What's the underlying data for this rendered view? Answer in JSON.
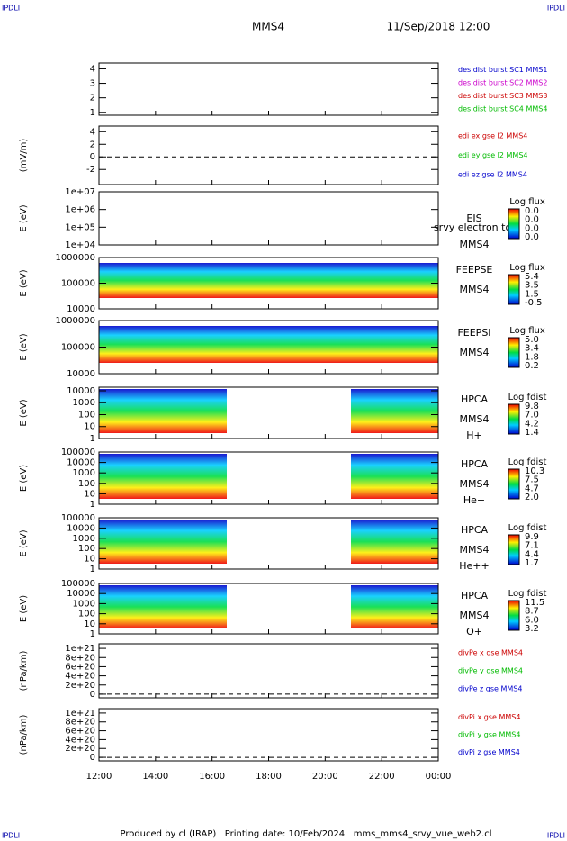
{
  "header": {
    "corner": "IPDLI",
    "mission": "MMS4",
    "date": "11/Sep/2018 12:00"
  },
  "footer": "Produced by cl (IRAP)   Printing date: 10/Feb/2024   mms_mms4_srvy_vue_web2.cl",
  "x_ticks": [
    "12:00",
    "14:00",
    "16:00",
    "18:00",
    "20:00",
    "22:00",
    "00:00"
  ],
  "chart_data": [
    {
      "type": "line",
      "ylim": [
        0.8,
        4.4
      ],
      "yticks": [
        4,
        3,
        2,
        1
      ],
      "series": [
        {
          "name": "des dist burst SC1 MMS1",
          "color": "#0000cc"
        },
        {
          "name": "des dist burst SC2 MMS2",
          "color": "#cc00cc"
        },
        {
          "name": "des dist burst SC3 MMS3",
          "color": "#cc0000"
        },
        {
          "name": "des dist burst SC4 MMS4",
          "color": "#00bb00"
        }
      ]
    },
    {
      "type": "line",
      "ylabel": "(mV/m)",
      "ylim": [
        -4.4,
        4.9
      ],
      "yticks": [
        4,
        2,
        0,
        -2
      ],
      "series": [
        {
          "name": "edi ex gse l2 MMS4",
          "color": "#cc0000"
        },
        {
          "name": "edi ey gse l2 MMS4",
          "color": "#00bb00"
        },
        {
          "name": "edi ez gse l2 MMS4",
          "color": "#0000cc"
        }
      ]
    },
    {
      "type": "spectrogram",
      "ylabel": "E (eV)",
      "log": true,
      "ylim": [
        10000,
        10000000
      ],
      "yticks": [
        {
          "value": 10000000,
          "label": "1e+07"
        },
        {
          "value": 1000000,
          "label": "1e+06"
        },
        {
          "value": 100000,
          "label": "1e+05"
        },
        {
          "value": 10000,
          "label": "1e+04"
        }
      ],
      "instrument": [
        "EIS",
        "srvy electron tof",
        "MMS4"
      ],
      "colorbar_title": "Log flux",
      "colorbar_ticks": [
        "0.0",
        "0.0",
        "0.0",
        "0.0"
      ]
    },
    {
      "type": "spectrogram",
      "ylabel": "E (eV)",
      "log": true,
      "ylim": [
        10000,
        1000000
      ],
      "yticks": [
        1000000,
        100000,
        10000
      ],
      "instrument": [
        "FEEPSE",
        "MMS4"
      ],
      "colorbar_title": "Log flux",
      "colorbar_ticks": [
        "5.4",
        "3.5",
        "1.5",
        "-0.5"
      ],
      "fill": "full"
    },
    {
      "type": "spectrogram",
      "ylabel": "E (eV)",
      "log": true,
      "ylim": [
        10000,
        1000000
      ],
      "yticks": [
        1000000,
        100000,
        10000
      ],
      "instrument": [
        "FEEPSI",
        "MMS4"
      ],
      "colorbar_title": "Log flux",
      "colorbar_ticks": [
        "5.0",
        "3.4",
        "1.8",
        "0.2"
      ],
      "fill": "full"
    },
    {
      "type": "spectrogram",
      "ylabel": "E (eV)",
      "log": true,
      "ylim": [
        1,
        20000
      ],
      "yticks": [
        10000,
        1000,
        100,
        10,
        1
      ],
      "instrument": [
        "HPCA",
        "MMS4",
        "H+"
      ],
      "colorbar_title": "Log fdist",
      "colorbar_ticks": [
        "9.8",
        "7.0",
        "4.2",
        "1.4"
      ],
      "fill": "split"
    },
    {
      "type": "spectrogram",
      "ylabel": "E (eV)",
      "log": true,
      "ylim": [
        1,
        100000
      ],
      "yticks": [
        100000,
        10000,
        1000,
        100,
        10,
        1
      ],
      "instrument": [
        "HPCA",
        "MMS4",
        "He+"
      ],
      "colorbar_title": "Log fdist",
      "colorbar_ticks": [
        "10.3",
        "7.5",
        "4.7",
        "2.0"
      ],
      "fill": "split"
    },
    {
      "type": "spectrogram",
      "ylabel": "E (eV)",
      "log": true,
      "ylim": [
        1,
        100000
      ],
      "yticks": [
        100000,
        10000,
        1000,
        100,
        10,
        1
      ],
      "instrument": [
        "HPCA",
        "MMS4",
        "He++"
      ],
      "colorbar_title": "Log fdist",
      "colorbar_ticks": [
        "9.9",
        "7.1",
        "4.4",
        "1.7"
      ],
      "fill": "split"
    },
    {
      "type": "spectrogram",
      "ylabel": "E (eV)",
      "log": true,
      "ylim": [
        1,
        100000
      ],
      "yticks": [
        100000,
        10000,
        1000,
        100,
        10,
        1
      ],
      "instrument": [
        "HPCA",
        "MMS4",
        "O+"
      ],
      "colorbar_title": "Log fdist",
      "colorbar_ticks": [
        "11.5",
        "8.7",
        "6.0",
        "3.2"
      ],
      "fill": "split"
    },
    {
      "type": "line",
      "ylabel": "(nPa/km)",
      "ylim": [
        -8e+19,
        1.1e+21
      ],
      "yticks": [
        {
          "value": 1e+21,
          "label": "1e+21"
        },
        {
          "value": 8e+20,
          "label": "8e+20"
        },
        {
          "value": 6e+20,
          "label": "6e+20"
        },
        {
          "value": 4e+20,
          "label": "4e+20"
        },
        {
          "value": 2e+20,
          "label": "2e+20"
        },
        0
      ],
      "series": [
        {
          "name": "divPe x gse MMS4",
          "color": "#cc0000"
        },
        {
          "name": "divPe y gse MMS4",
          "color": "#00bb00"
        },
        {
          "name": "divPe z gse MMS4",
          "color": "#0000cc"
        }
      ]
    },
    {
      "type": "line",
      "ylabel": "(nPa/km)",
      "ylim": [
        -8e+19,
        1.1e+21
      ],
      "yticks": [
        {
          "value": 1e+21,
          "label": "1e+21"
        },
        {
          "value": 8e+20,
          "label": "8e+20"
        },
        {
          "value": 6e+20,
          "label": "6e+20"
        },
        {
          "value": 4e+20,
          "label": "4e+20"
        },
        {
          "value": 2e+20,
          "label": "2e+20"
        },
        0
      ],
      "series": [
        {
          "name": "divPi x gse MMS4",
          "color": "#cc0000"
        },
        {
          "name": "divPi y gse MMS4",
          "color": "#00bb00"
        },
        {
          "name": "divPi z gse MMS4",
          "color": "#0000cc"
        }
      ]
    }
  ]
}
